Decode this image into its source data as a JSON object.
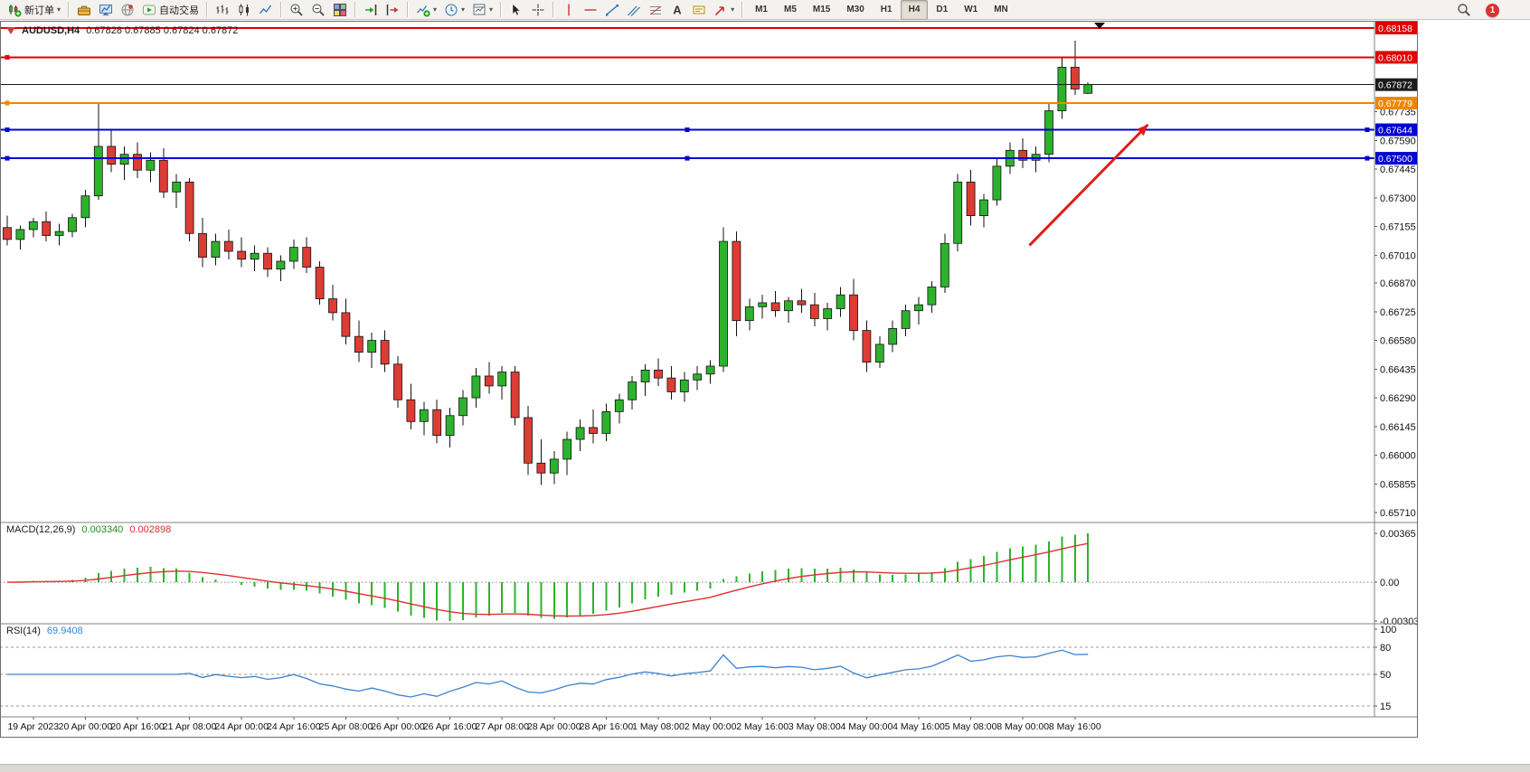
{
  "toolbar": {
    "notification_count": "1",
    "items": [
      {
        "name": "new-order-button",
        "icon": "neworder",
        "label": "新订单",
        "caret": true
      },
      {
        "sep": true
      },
      {
        "name": "metaeditor-button",
        "icon": "toolbox"
      },
      {
        "name": "new-chart-button",
        "icon": "monitor"
      },
      {
        "name": "community-button",
        "icon": "globe"
      },
      {
        "name": "autotrading-button",
        "icon": "autotrade",
        "label": "自动交易"
      },
      {
        "sep": true
      },
      {
        "name": "bar-chart-button",
        "icon": "bars"
      },
      {
        "name": "candlestick-chart-button",
        "icon": "candles"
      },
      {
        "name": "line-chart-button",
        "icon": "linechart"
      },
      {
        "sep": true
      },
      {
        "name": "zoom-in-button",
        "icon": "zoomin"
      },
      {
        "name": "zoom-out-button",
        "icon": "zoomout"
      },
      {
        "name": "tile-windows-button",
        "icon": "tiles"
      },
      {
        "sep": true
      },
      {
        "name": "auto-scroll-button",
        "icon": "autoscroll"
      },
      {
        "name": "chart-shift-button",
        "icon": "shift"
      },
      {
        "sep": true
      },
      {
        "name": "indicators-button",
        "icon": "indicator",
        "caret": true
      },
      {
        "name": "periods-button",
        "icon": "clock",
        "caret": true
      },
      {
        "name": "templates-button",
        "icon": "template",
        "caret": true
      },
      {
        "sep": true
      },
      {
        "name": "cursor-button",
        "icon": "cursor"
      },
      {
        "name": "crosshair-button",
        "icon": "crosshair"
      },
      {
        "sep": true
      },
      {
        "name": "vertical-line-button",
        "icon": "vline"
      },
      {
        "name": "horizontal-line-button",
        "icon": "hline"
      },
      {
        "name": "trendline-button",
        "icon": "trendline"
      },
      {
        "name": "channel-button",
        "icon": "channel"
      },
      {
        "name": "fibonacci-button",
        "icon": "fibo"
      },
      {
        "name": "text-button",
        "icon": "text"
      },
      {
        "name": "text-label-button",
        "icon": "textlabel"
      },
      {
        "name": "arrows-button",
        "icon": "shapes",
        "caret": true
      },
      {
        "sep": true
      },
      {
        "name": "timeframe-m1",
        "label": "M1",
        "tf": true
      },
      {
        "name": "timeframe-m5",
        "label": "M5",
        "tf": true
      },
      {
        "name": "timeframe-m15",
        "label": "M15",
        "tf": true
      },
      {
        "name": "timeframe-m30",
        "label": "M30",
        "tf": true
      },
      {
        "name": "timeframe-h1",
        "label": "H1",
        "tf": true
      },
      {
        "name": "timeframe-h4",
        "label": "H4",
        "tf": true,
        "active": true
      },
      {
        "name": "timeframe-d1",
        "label": "D1",
        "tf": true
      },
      {
        "name": "timeframe-w1",
        "label": "W1",
        "tf": true
      },
      {
        "name": "timeframe-mn",
        "label": "MN",
        "tf": true
      }
    ]
  },
  "chart_data": {
    "type": "candlestick",
    "symbol": "AUDUSD",
    "timeframe": "H4",
    "title": "AUDUSD,H4",
    "ohlc_text": "0.67828 0.67885 0.67824 0.67872",
    "colors": {
      "bull": "#2db22d",
      "bear": "#dd3c34",
      "wick": "#111111",
      "background": "#ffffff"
    },
    "price_scale": {
      "min": 0.6566,
      "max": 0.6819
    },
    "price_axis_labels": [
      "0.67735",
      "0.67590",
      "0.67445",
      "0.67300",
      "0.67155",
      "0.67010",
      "0.66870",
      "0.66725",
      "0.66580",
      "0.66435",
      "0.66290",
      "0.66145",
      "0.66000",
      "0.65855",
      "0.65710"
    ],
    "lines": [
      {
        "name": "resistance-line-1",
        "price": 0.68158,
        "color": "#e00000",
        "width": 2,
        "label": "0.68158",
        "handles": []
      },
      {
        "name": "resistance-line-2",
        "price": 0.6801,
        "color": "#e00000",
        "width": 2,
        "label": "0.68010",
        "handles": [
          "left"
        ]
      },
      {
        "name": "bid-price-line",
        "price": 0.67872,
        "color": "#1a1a1a",
        "width": 1,
        "label": "0.67872",
        "handles": []
      },
      {
        "name": "orange-level-line",
        "price": 0.67779,
        "color": "#f28500",
        "width": 2,
        "label": "0.67779",
        "handles": [
          "left"
        ]
      },
      {
        "name": "support-line-1",
        "price": 0.67644,
        "color": "#0000d0",
        "width": 2,
        "label": "0.67644",
        "handles": [
          "left",
          "center",
          "right"
        ]
      },
      {
        "name": "support-line-2",
        "price": 0.675,
        "color": "#0000d0",
        "width": 2,
        "label": "0.67500",
        "handles": [
          "left",
          "center",
          "right"
        ]
      }
    ],
    "candles": [
      [
        0.6715,
        0.6721,
        0.6706,
        0.6709
      ],
      [
        0.6709,
        0.6716,
        0.6704,
        0.6714
      ],
      [
        0.6714,
        0.672,
        0.671,
        0.6718
      ],
      [
        0.6718,
        0.6723,
        0.6708,
        0.6711
      ],
      [
        0.6711,
        0.6717,
        0.6706,
        0.6713
      ],
      [
        0.6713,
        0.6722,
        0.671,
        0.672
      ],
      [
        0.672,
        0.6734,
        0.6715,
        0.6731
      ],
      [
        0.6731,
        0.6778,
        0.6729,
        0.6756
      ],
      [
        0.6756,
        0.6764,
        0.6743,
        0.6747
      ],
      [
        0.6747,
        0.6756,
        0.6739,
        0.6752
      ],
      [
        0.6752,
        0.6758,
        0.674,
        0.6744
      ],
      [
        0.6744,
        0.6753,
        0.6738,
        0.6749
      ],
      [
        0.6749,
        0.6755,
        0.673,
        0.6733
      ],
      [
        0.6733,
        0.6742,
        0.6725,
        0.6738
      ],
      [
        0.6738,
        0.674,
        0.6708,
        0.6712
      ],
      [
        0.6712,
        0.672,
        0.6695,
        0.67
      ],
      [
        0.67,
        0.6712,
        0.6696,
        0.6708
      ],
      [
        0.6708,
        0.6714,
        0.6699,
        0.6703
      ],
      [
        0.6703,
        0.671,
        0.6695,
        0.6699
      ],
      [
        0.6699,
        0.6706,
        0.6693,
        0.6702
      ],
      [
        0.6702,
        0.6705,
        0.669,
        0.6694
      ],
      [
        0.6694,
        0.6701,
        0.6688,
        0.6698
      ],
      [
        0.6698,
        0.6709,
        0.6694,
        0.6705
      ],
      [
        0.6705,
        0.671,
        0.6692,
        0.6695
      ],
      [
        0.6695,
        0.6698,
        0.6676,
        0.6679
      ],
      [
        0.6679,
        0.6686,
        0.6668,
        0.6672
      ],
      [
        0.6672,
        0.6679,
        0.6656,
        0.666
      ],
      [
        0.666,
        0.6668,
        0.6647,
        0.6652
      ],
      [
        0.6652,
        0.6662,
        0.6644,
        0.6658
      ],
      [
        0.6658,
        0.6663,
        0.6642,
        0.6646
      ],
      [
        0.6646,
        0.665,
        0.6624,
        0.6628
      ],
      [
        0.6628,
        0.6636,
        0.6613,
        0.6617
      ],
      [
        0.6617,
        0.6627,
        0.661,
        0.6623
      ],
      [
        0.6623,
        0.6628,
        0.6606,
        0.661
      ],
      [
        0.661,
        0.6624,
        0.6604,
        0.662
      ],
      [
        0.662,
        0.6633,
        0.6615,
        0.6629
      ],
      [
        0.6629,
        0.6644,
        0.6624,
        0.664
      ],
      [
        0.664,
        0.6647,
        0.6631,
        0.6635
      ],
      [
        0.6635,
        0.6645,
        0.6628,
        0.6642
      ],
      [
        0.6642,
        0.6645,
        0.6615,
        0.6619
      ],
      [
        0.6619,
        0.6625,
        0.659,
        0.6596
      ],
      [
        0.6596,
        0.6608,
        0.6585,
        0.6591
      ],
      [
        0.6591,
        0.6602,
        0.65855,
        0.6598
      ],
      [
        0.6598,
        0.6612,
        0.659,
        0.6608
      ],
      [
        0.6608,
        0.6618,
        0.6602,
        0.6614
      ],
      [
        0.6614,
        0.6623,
        0.6606,
        0.6611
      ],
      [
        0.6611,
        0.6626,
        0.6607,
        0.6622
      ],
      [
        0.6622,
        0.6631,
        0.6616,
        0.6628
      ],
      [
        0.6628,
        0.664,
        0.6623,
        0.6637
      ],
      [
        0.6637,
        0.6646,
        0.663,
        0.6643
      ],
      [
        0.6643,
        0.6649,
        0.6635,
        0.6639
      ],
      [
        0.6639,
        0.6645,
        0.6628,
        0.6632
      ],
      [
        0.6632,
        0.6642,
        0.6627,
        0.6638
      ],
      [
        0.6638,
        0.6645,
        0.6633,
        0.6641
      ],
      [
        0.6641,
        0.6648,
        0.6636,
        0.6645
      ],
      [
        0.6645,
        0.6715,
        0.6642,
        0.6708
      ],
      [
        0.6708,
        0.6713,
        0.666,
        0.6668
      ],
      [
        0.6668,
        0.6679,
        0.6663,
        0.6675
      ],
      [
        0.6675,
        0.6681,
        0.6669,
        0.6677
      ],
      [
        0.6677,
        0.6683,
        0.667,
        0.6673
      ],
      [
        0.6673,
        0.668,
        0.6667,
        0.6678
      ],
      [
        0.6678,
        0.6684,
        0.6672,
        0.6676
      ],
      [
        0.6676,
        0.6682,
        0.6665,
        0.6669
      ],
      [
        0.6669,
        0.6677,
        0.6663,
        0.6674
      ],
      [
        0.6674,
        0.6685,
        0.667,
        0.6681
      ],
      [
        0.6681,
        0.6689,
        0.6658,
        0.6663
      ],
      [
        0.6663,
        0.6668,
        0.6642,
        0.6647
      ],
      [
        0.6647,
        0.666,
        0.6644,
        0.6656
      ],
      [
        0.6656,
        0.6668,
        0.6652,
        0.6664
      ],
      [
        0.6664,
        0.6676,
        0.666,
        0.6673
      ],
      [
        0.6673,
        0.668,
        0.6666,
        0.6676
      ],
      [
        0.6676,
        0.6688,
        0.6672,
        0.6685
      ],
      [
        0.6685,
        0.6712,
        0.6682,
        0.6707
      ],
      [
        0.6707,
        0.6742,
        0.6703,
        0.6738
      ],
      [
        0.6738,
        0.6744,
        0.6716,
        0.6721
      ],
      [
        0.6721,
        0.6732,
        0.6715,
        0.6729
      ],
      [
        0.6729,
        0.675,
        0.6726,
        0.6746
      ],
      [
        0.6746,
        0.6758,
        0.6742,
        0.6754
      ],
      [
        0.6754,
        0.676,
        0.6745,
        0.6749
      ],
      [
        0.6749,
        0.6756,
        0.6743,
        0.6752
      ],
      [
        0.6752,
        0.6778,
        0.6748,
        0.6774
      ],
      [
        0.6774,
        0.6801,
        0.677,
        0.6796
      ],
      [
        0.6796,
        0.68095,
        0.6782,
        0.6785
      ],
      [
        0.67828,
        0.67885,
        0.67824,
        0.67872
      ]
    ],
    "time_axis": {
      "start_index": 2,
      "step": 4,
      "labels": [
        "19 Apr 2023",
        "20 Apr 00:00",
        "20 Apr 16:00",
        "21 Apr 08:00",
        "24 Apr 00:00",
        "24 Apr 16:00",
        "25 Apr 08:00",
        "26 Apr 00:00",
        "26 Apr 16:00",
        "27 Apr 08:00",
        "28 Apr 00:00",
        "28 Apr 16:00",
        "1 May 08:00",
        "2 May 00:00",
        "2 May 16:00",
        "3 May 08:00",
        "4 May 00:00",
        "4 May 16:00",
        "5 May 08:00",
        "8 May 00:00",
        "8 May 16:00"
      ]
    },
    "macd": {
      "label": "MACD(12,26,9)",
      "value_main": "0.003340",
      "value_signal": "0.002898",
      "params": [
        12,
        26,
        9
      ],
      "histogram_color": "#2db22d",
      "signal_color": "#e03030",
      "axis_labels": [
        "0.00365",
        "0.00",
        "-0.00303"
      ]
    },
    "rsi": {
      "label": "RSI(14)",
      "value": "69.9408",
      "period": 14,
      "line_color": "#3b82d0",
      "scale": {
        "min": 3,
        "max": 106
      },
      "levels": [
        80,
        50,
        15
      ],
      "axis_labels": [
        {
          "text": "100",
          "value": 100
        },
        {
          "text": "80",
          "value": 80
        },
        {
          "text": "50",
          "value": 50
        },
        {
          "text": "15",
          "value": 15
        }
      ]
    },
    "annotations": [
      {
        "type": "arrow",
        "color": "#e01b1b",
        "width": 3,
        "from": {
          "bar": 78.5,
          "price": 0.6706
        },
        "to": {
          "bar": 87.6,
          "price": 0.6767
        }
      }
    ]
  }
}
